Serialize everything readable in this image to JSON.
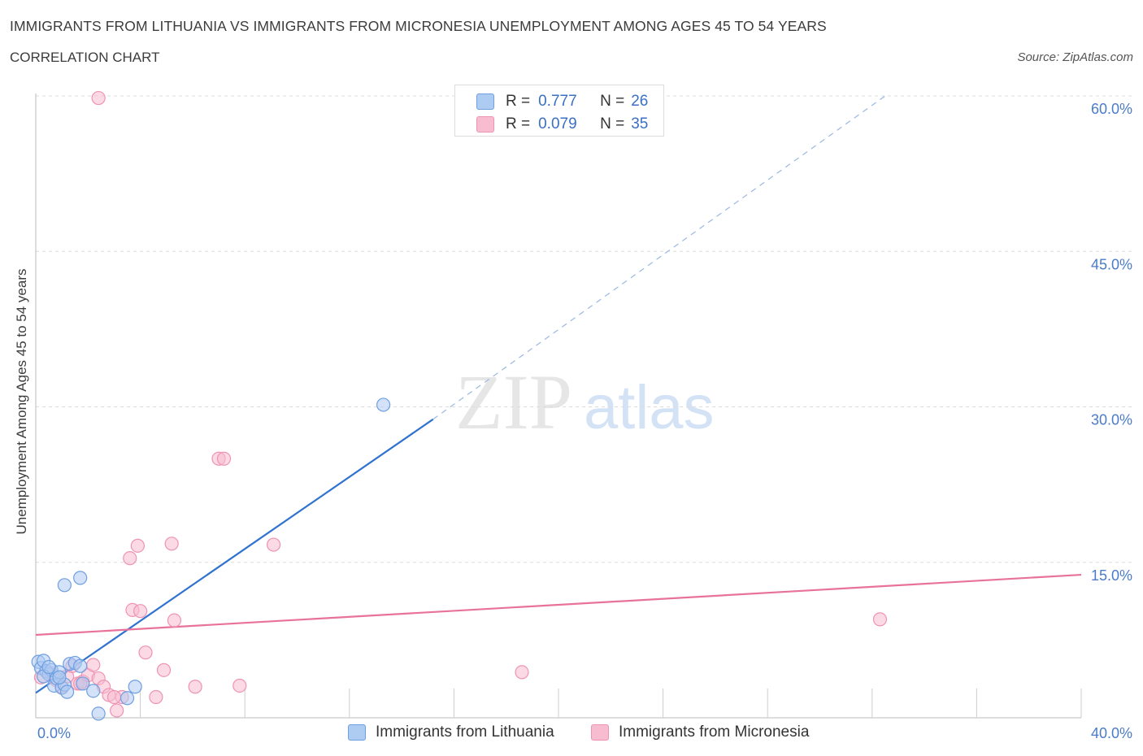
{
  "header": {
    "title": "IMMIGRANTS FROM LITHUANIA VS IMMIGRANTS FROM MICRONESIA UNEMPLOYMENT AMONG AGES 45 TO 54 YEARS",
    "subtitle": "CORRELATION CHART",
    "source": "Source: ZipAtlas.com"
  },
  "watermark": {
    "zip": "ZIP",
    "atlas": "atlas"
  },
  "legend": {
    "r_label": "R =",
    "n_label": "N =",
    "series": [
      {
        "name": "Immigrants from Lithuania",
        "r": "0.777",
        "n": "26"
      },
      {
        "name": "Immigrants from Micronesia",
        "r": "0.079",
        "n": "35"
      }
    ]
  },
  "colors": {
    "lithuania_fill": "#aecbf2",
    "lithuania_stroke": "#6e9fe0",
    "lithuania_line": "#2f72d0",
    "micronesia_fill": "#f7bcd0",
    "micronesia_stroke": "#ef93b3",
    "micronesia_line": "#e8729a",
    "axis_label": "#4a7cc9"
  },
  "chart_data": {
    "type": "scatter",
    "title": "IMMIGRANTS FROM LITHUANIA VS IMMIGRANTS FROM MICRONESIA UNEMPLOYMENT AMONG AGES 45 TO 54 YEARS",
    "xlabel": "",
    "ylabel": "Unemployment Among Ages 45 to 54 years",
    "xlim": [
      0,
      40
    ],
    "ylim": [
      0,
      60
    ],
    "x_tick_labels": [
      "0.0%",
      "40.0%"
    ],
    "y_ticks": [
      15,
      30,
      45,
      60
    ],
    "y_tick_labels": [
      "15.0%",
      "30.0%",
      "45.0%",
      "60.0%"
    ],
    "grid": true,
    "series": [
      {
        "name": "Immigrants from Lithuania",
        "points": [
          [
            0.1,
            5.4
          ],
          [
            0.2,
            4.8
          ],
          [
            0.3,
            5.5
          ],
          [
            0.4,
            4.5
          ],
          [
            0.5,
            4.2
          ],
          [
            0.6,
            4.6
          ],
          [
            0.7,
            3.1
          ],
          [
            0.8,
            3.8
          ],
          [
            0.9,
            4.4
          ],
          [
            1.0,
            2.9
          ],
          [
            1.1,
            3.2
          ],
          [
            1.2,
            2.5
          ],
          [
            1.3,
            5.2
          ],
          [
            1.5,
            5.3
          ],
          [
            1.7,
            5.0
          ],
          [
            1.8,
            3.3
          ],
          [
            2.2,
            2.6
          ],
          [
            2.4,
            0.4
          ],
          [
            3.5,
            1.9
          ],
          [
            3.8,
            3.0
          ],
          [
            1.1,
            12.8
          ],
          [
            1.7,
            13.5
          ],
          [
            13.3,
            30.2
          ],
          [
            0.3,
            4.0
          ],
          [
            0.5,
            4.9
          ],
          [
            0.9,
            3.9
          ]
        ],
        "trend": {
          "x0": 0,
          "y0": 2.4,
          "x1": 15.2,
          "y1": 28.8,
          "dash_x0": 15.2,
          "dash_y0": 28.8,
          "dash_x1": 32.5,
          "dash_y1": 60.0
        }
      },
      {
        "name": "Immigrants from Micronesia",
        "points": [
          [
            0.2,
            3.9
          ],
          [
            0.4,
            4.5
          ],
          [
            0.6,
            4.3
          ],
          [
            0.8,
            3.6
          ],
          [
            1.0,
            3.0
          ],
          [
            1.2,
            4.0
          ],
          [
            1.4,
            5.0
          ],
          [
            1.6,
            3.3
          ],
          [
            1.8,
            3.5
          ],
          [
            2.0,
            4.1
          ],
          [
            2.2,
            5.1
          ],
          [
            2.4,
            3.8
          ],
          [
            2.6,
            3.0
          ],
          [
            2.8,
            2.2
          ],
          [
            3.1,
            0.7
          ],
          [
            3.3,
            2.0
          ],
          [
            3.6,
            15.4
          ],
          [
            3.9,
            16.6
          ],
          [
            3.7,
            10.4
          ],
          [
            4.0,
            10.3
          ],
          [
            4.2,
            6.3
          ],
          [
            4.6,
            2.0
          ],
          [
            4.9,
            4.6
          ],
          [
            5.3,
            9.4
          ],
          [
            5.2,
            16.8
          ],
          [
            6.1,
            3.0
          ],
          [
            7.0,
            25.0
          ],
          [
            7.2,
            25.0
          ],
          [
            7.8,
            3.1
          ],
          [
            9.1,
            16.7
          ],
          [
            18.6,
            4.4
          ],
          [
            32.3,
            9.5
          ],
          [
            2.4,
            59.8
          ],
          [
            1.7,
            3.3
          ],
          [
            3.0,
            2.0
          ]
        ],
        "trend": {
          "x0": 0,
          "y0": 8.0,
          "x1": 40,
          "y1": 13.8
        }
      }
    ]
  }
}
